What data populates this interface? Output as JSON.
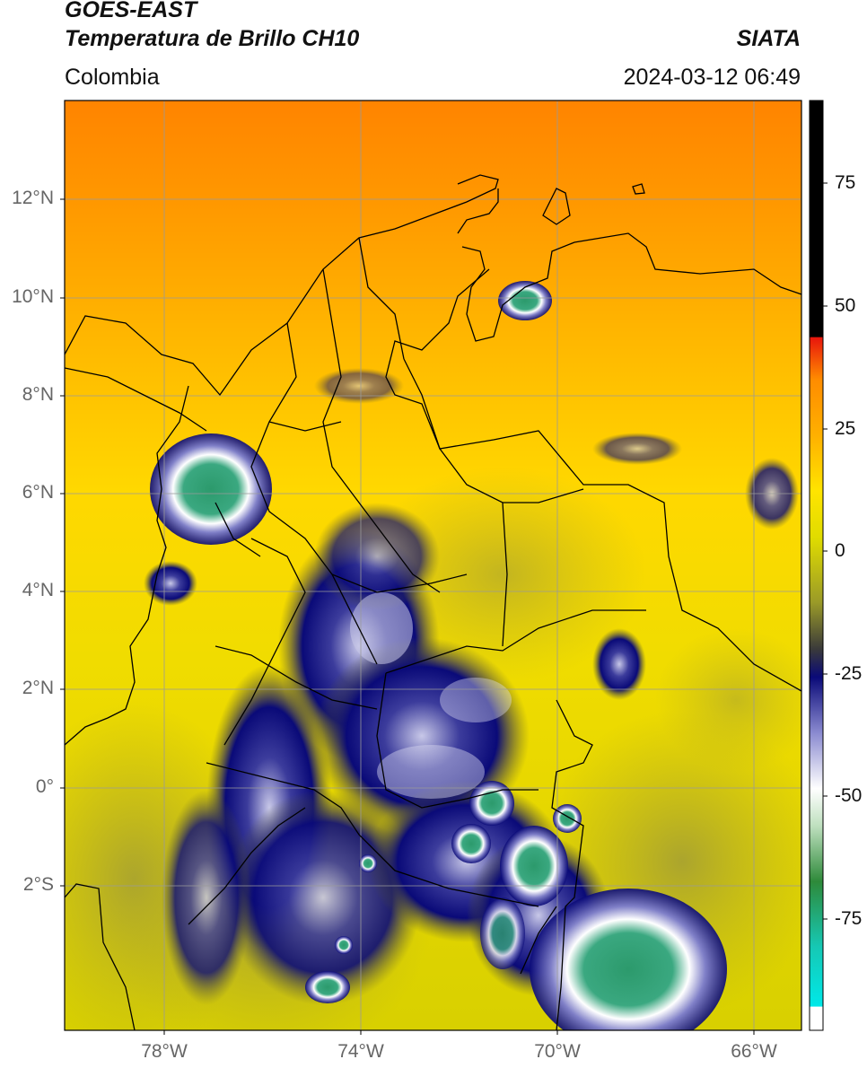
{
  "header": {
    "title_line1": "GOES-EAST",
    "title_line2": "Temperatura de Brillo CH10",
    "brand": "SIATA",
    "region": "Colombia",
    "datetime": "2024-03-12 06:49"
  },
  "map": {
    "lat_labels": [
      "12°N",
      "10°N",
      "8°N",
      "6°N",
      "4°N",
      "2°N",
      "0°",
      "2°S"
    ],
    "lon_labels": [
      "78°W",
      "74°W",
      "70°W",
      "66°W"
    ],
    "border_color": "#000000",
    "grid_color": "#9a9a9a"
  },
  "colorbar": {
    "tick_labels": [
      "75",
      "50",
      "25",
      "0",
      "-25",
      "-50",
      "-75"
    ],
    "colors": {
      "black": "#000000",
      "red": "#e8160c",
      "orange": "#ff8c00",
      "yellow": "#ffe400",
      "olive": "#9a9a28",
      "navy": "#0a0a78",
      "white": "#ffffff",
      "green": "#2e8a3a",
      "teal": "#14c8b4",
      "cyan": "#00ffff"
    }
  }
}
